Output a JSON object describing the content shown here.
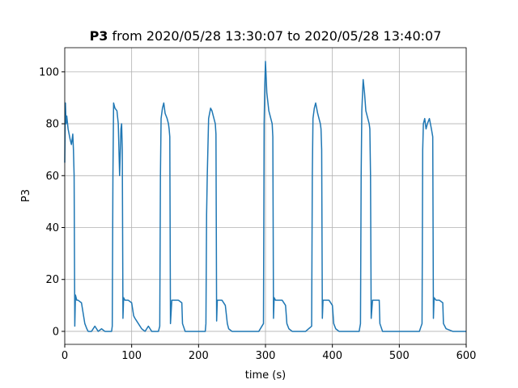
{
  "chart_data": {
    "type": "line",
    "title_bold": "P3",
    "title": "from 2020/05/28 13:30:07 to 2020/05/28 13:40:07",
    "xlabel": "time (s)",
    "ylabel": "P3",
    "xlim": [
      0,
      600
    ],
    "xticks": [
      0,
      100,
      200,
      300,
      400,
      500,
      600
    ],
    "ylim": [
      -5,
      109.3
    ],
    "yticks": [
      0,
      20,
      40,
      60,
      80,
      100
    ],
    "grid": true,
    "x": [
      0,
      1,
      2,
      3,
      5,
      8,
      10,
      12,
      13,
      14,
      15,
      16,
      18,
      20,
      25,
      30,
      33,
      35,
      40,
      45,
      50,
      55,
      60,
      65,
      70,
      71,
      72,
      73,
      75,
      78,
      80,
      82,
      84,
      85,
      86,
      87,
      88,
      90,
      95,
      100,
      103,
      105,
      110,
      115,
      120,
      125,
      130,
      140,
      142,
      143,
      144,
      146,
      148,
      150,
      153,
      155,
      156,
      157,
      158,
      160,
      165,
      170,
      175,
      176,
      180,
      190,
      200,
      210,
      211,
      212,
      213,
      215,
      218,
      220,
      223,
      225,
      226,
      227,
      228,
      230,
      235,
      240,
      243,
      245,
      250,
      260,
      270,
      280,
      290,
      297,
      298,
      299,
      300,
      302,
      305,
      308,
      310,
      311,
      312,
      313,
      315,
      320,
      325,
      330,
      332,
      335,
      340,
      350,
      360,
      369,
      370,
      371,
      373,
      375,
      378,
      380,
      382,
      383,
      384,
      385,
      386,
      390,
      395,
      400,
      402,
      405,
      410,
      420,
      430,
      440,
      442,
      443,
      444,
      446,
      448,
      450,
      453,
      455,
      456,
      457,
      458,
      460,
      465,
      470,
      471,
      475,
      480,
      490,
      500,
      510,
      520,
      530,
      534,
      535,
      536,
      538,
      540,
      542,
      545,
      548,
      550,
      551,
      552,
      555,
      560,
      565,
      566,
      570,
      580,
      590,
      600
    ],
    "series": [
      {
        "name": "P3",
        "color": "#1f77b4",
        "values": [
          65,
          88,
          80,
          83,
          78,
          74,
          72,
          76,
          70,
          60,
          2,
          14,
          12,
          12,
          11,
          3,
          1,
          0,
          0,
          2,
          0,
          1,
          0,
          0,
          0,
          2,
          60,
          88,
          86,
          85,
          80,
          60,
          78,
          80,
          70,
          5,
          13,
          12,
          12,
          11,
          6,
          5,
          3,
          1,
          0,
          2,
          0,
          0,
          2,
          60,
          82,
          86,
          88,
          84,
          82,
          80,
          78,
          75,
          3,
          12,
          12,
          12,
          11,
          3,
          0,
          0,
          0,
          0,
          3,
          45,
          60,
          82,
          86,
          85,
          82,
          80,
          76,
          4,
          12,
          12,
          12,
          10,
          3,
          1,
          0,
          0,
          0,
          0,
          0,
          3,
          80,
          95,
          104,
          92,
          85,
          82,
          80,
          75,
          5,
          13,
          12,
          12,
          12,
          10,
          3,
          1,
          0,
          0,
          0,
          2,
          60,
          82,
          86,
          88,
          84,
          82,
          80,
          78,
          70,
          5,
          12,
          12,
          12,
          10,
          3,
          1,
          0,
          0,
          0,
          0,
          3,
          60,
          85,
          97,
          92,
          85,
          82,
          80,
          78,
          60,
          5,
          12,
          12,
          12,
          3,
          0,
          0,
          0,
          0,
          0,
          0,
          0,
          3,
          70,
          80,
          82,
          78,
          80,
          82,
          78,
          75,
          5,
          13,
          12,
          12,
          11,
          3,
          1,
          0,
          0,
          0
        ]
      }
    ]
  }
}
